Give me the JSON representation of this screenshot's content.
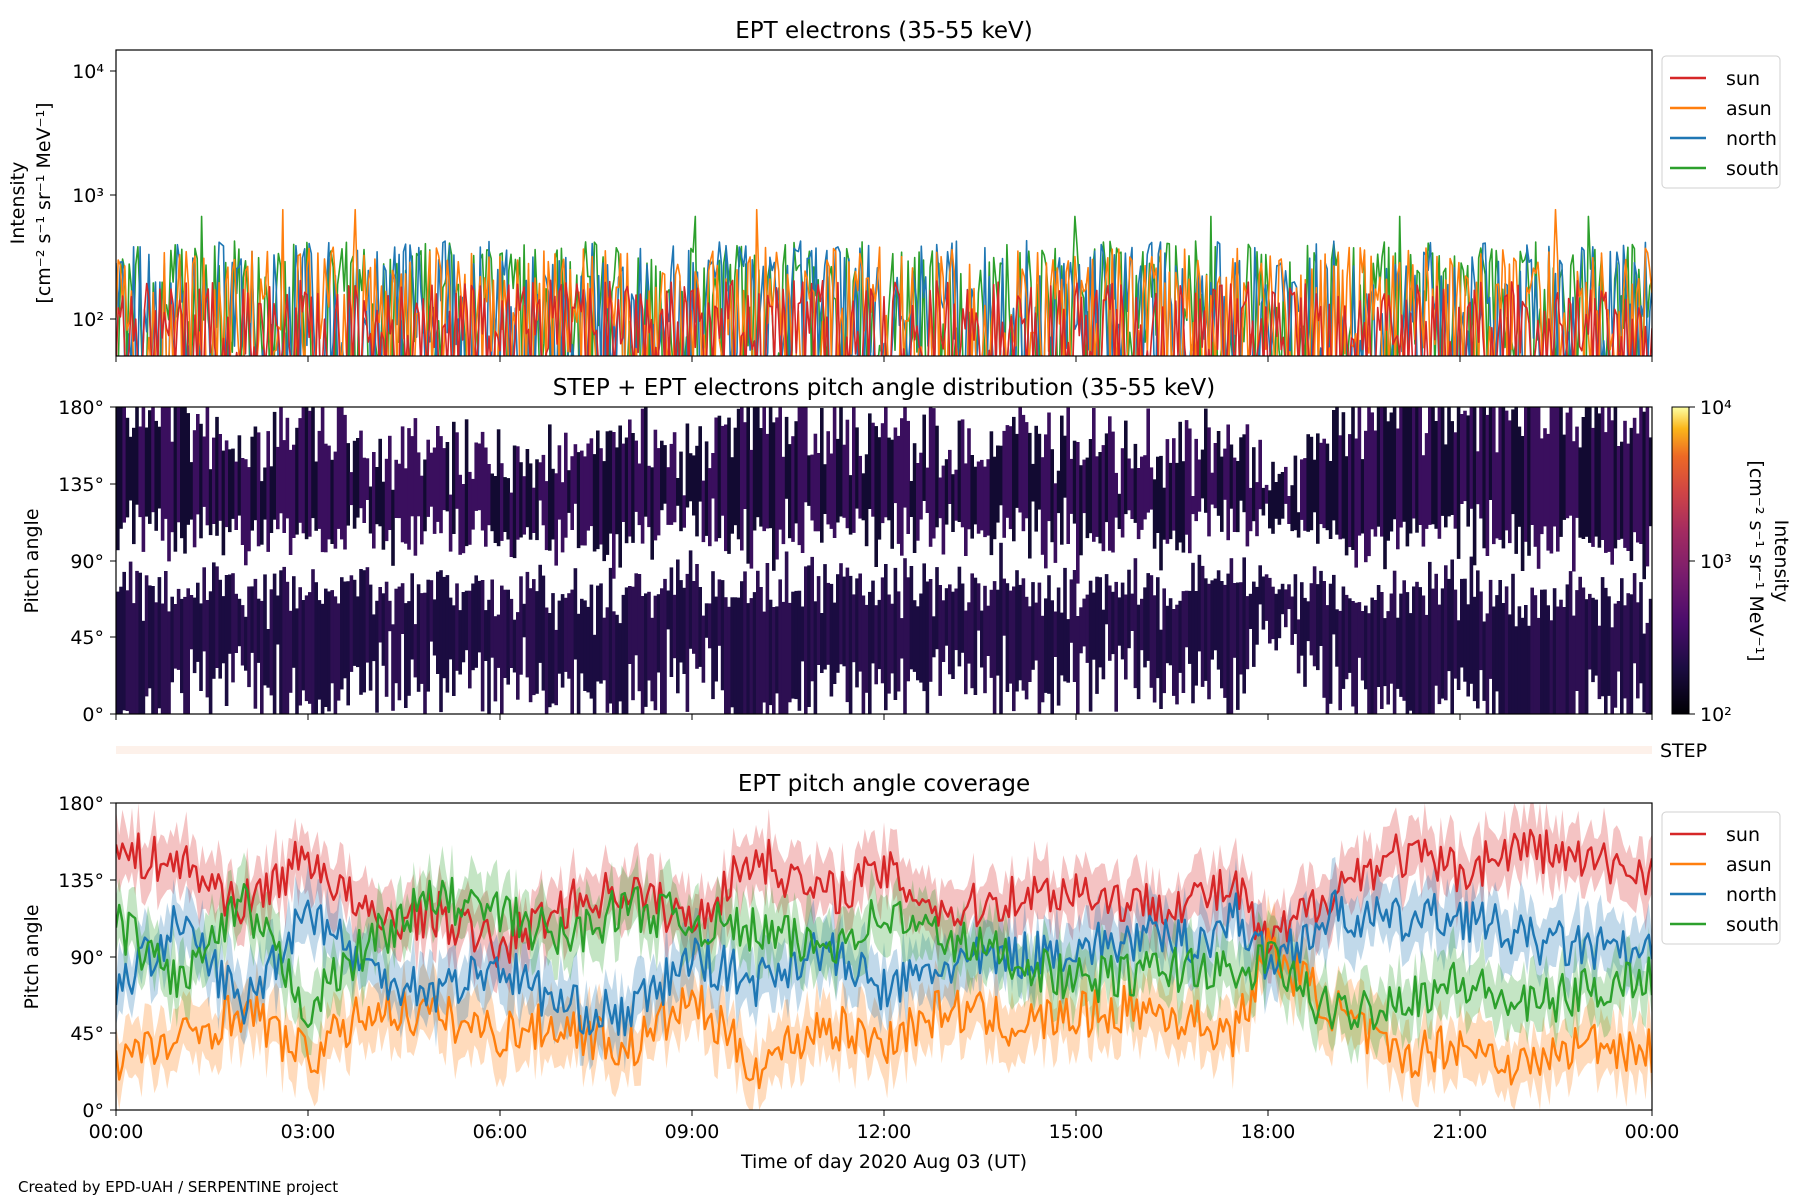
{
  "figure": {
    "footer": "Created by EPD-UAH / SERPENTINE project",
    "xlabel": "Time of day 2020 Aug 03 (UT)",
    "x_ticks": [
      "00:00",
      "03:00",
      "06:00",
      "09:00",
      "12:00",
      "15:00",
      "18:00",
      "21:00",
      "00:00"
    ]
  },
  "panel1": {
    "title": "EPT electrons (35-55 keV)",
    "ylabel_line1": "Intensity",
    "ylabel_line2": "[cm⁻² s⁻¹ sr⁻¹ MeV⁻¹]",
    "y_ticks": [
      "10²",
      "10³",
      "10⁴"
    ],
    "legend": [
      "sun",
      "asun",
      "north",
      "south"
    ]
  },
  "panel2": {
    "title": "STEP + EPT electrons pitch angle distribution (35-55 keV)",
    "ylabel": "Pitch angle",
    "y_ticks": [
      "0°",
      "45°",
      "90°",
      "135°",
      "180°"
    ],
    "colorbar_label_line1": "Intensity",
    "colorbar_label_line2": "[cm⁻² s⁻¹ sr⁻¹ MeV⁻¹]",
    "colorbar_ticks": [
      "10²",
      "10³",
      "10⁴"
    ]
  },
  "step_strip": {
    "label": "STEP"
  },
  "panel3": {
    "title": "EPT pitch angle coverage",
    "ylabel": "Pitch angle",
    "y_ticks": [
      "0°",
      "45°",
      "90°",
      "135°",
      "180°"
    ],
    "legend": [
      "sun",
      "asun",
      "north",
      "south"
    ]
  },
  "colors": {
    "sun": "#d62728",
    "asun": "#ff7f0e",
    "north": "#1f77b4",
    "south": "#2ca02c"
  },
  "chart_data": [
    {
      "type": "line",
      "title": "EPT electrons (35-55 keV)",
      "ylabel": "Intensity [cm⁻² s⁻¹ sr⁻¹ MeV⁻¹]",
      "yscale": "log",
      "ylim": [
        55,
        14500
      ],
      "xlim_hours": [
        0,
        24
      ],
      "legend_position": "outside-top-right",
      "series": [
        {
          "name": "sun",
          "approx_range": [
            55,
            220
          ],
          "typical": 110
        },
        {
          "name": "asun",
          "approx_range": [
            55,
            400
          ],
          "typical": 180,
          "max": 790
        },
        {
          "name": "north",
          "approx_range": [
            55,
            450
          ],
          "typical": 200
        },
        {
          "name": "south",
          "approx_range": [
            55,
            450
          ],
          "typical": 190,
          "max": 700
        }
      ]
    },
    {
      "type": "heatmap",
      "title": "STEP + EPT electrons pitch angle distribution (35-55 keV)",
      "ylabel": "Pitch angle",
      "ylim": [
        0,
        180
      ],
      "xlim_hours": [
        0,
        24
      ],
      "colorbar_scale": "log",
      "colorbar_range": [
        100,
        10000
      ],
      "colormap": "inferno",
      "typical_intensity": 150
    },
    {
      "type": "area",
      "title": "EPT pitch angle coverage",
      "ylabel": "Pitch angle",
      "ylim": [
        0,
        180
      ],
      "xlim_hours": [
        0,
        24
      ],
      "legend_position": "outside-top-right",
      "series": [
        {
          "name": "sun",
          "t": [
            0,
            1,
            2,
            3,
            4,
            5,
            6,
            7,
            8,
            9,
            10,
            11,
            12,
            13,
            14,
            15,
            16,
            17,
            17.5,
            18,
            19,
            20,
            21,
            22,
            23,
            24
          ],
          "values": [
            150,
            145,
            120,
            150,
            110,
            115,
            95,
            120,
            130,
            110,
            150,
            125,
            140,
            115,
            125,
            130,
            120,
            125,
            130,
            95,
            130,
            150,
            140,
            155,
            145,
            140
          ]
        },
        {
          "name": "asun",
          "t": [
            0,
            1,
            2,
            3,
            4,
            5,
            6,
            7,
            8,
            9,
            10,
            11,
            12,
            13,
            14,
            15,
            16,
            17,
            17.5,
            18,
            19,
            20,
            21,
            22,
            23,
            24
          ],
          "values": [
            30,
            40,
            60,
            30,
            60,
            55,
            45,
            50,
            35,
            65,
            25,
            50,
            40,
            60,
            50,
            55,
            60,
            50,
            45,
            95,
            60,
            30,
            40,
            25,
            40,
            35
          ]
        },
        {
          "name": "north",
          "t": [
            0,
            1,
            2,
            3,
            4,
            5,
            6,
            7,
            8,
            9,
            10,
            11,
            12,
            13,
            14,
            15,
            16,
            17,
            17.5,
            18,
            19,
            20,
            21,
            22,
            23,
            24
          ],
          "values": [
            70,
            110,
            60,
            120,
            80,
            70,
            85,
            60,
            55,
            90,
            75,
            95,
            70,
            85,
            90,
            95,
            100,
            100,
            115,
            85,
            115,
            110,
            115,
            100,
            95,
            90
          ]
        },
        {
          "name": "south",
          "t": [
            0,
            1,
            2,
            3,
            4,
            5,
            6,
            7,
            8,
            9,
            10,
            11,
            12,
            13,
            14,
            15,
            16,
            17,
            17.5,
            18,
            19,
            20,
            21,
            22,
            23,
            24
          ],
          "values": [
            110,
            75,
            120,
            60,
            100,
            125,
            115,
            100,
            120,
            110,
            105,
            95,
            115,
            100,
            90,
            75,
            80,
            85,
            75,
            90,
            55,
            65,
            75,
            60,
            70,
            80
          ]
        }
      ]
    }
  ]
}
